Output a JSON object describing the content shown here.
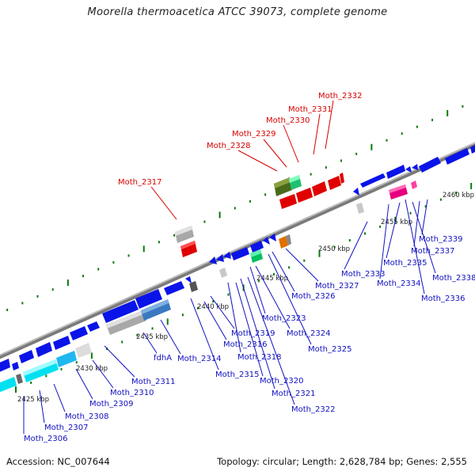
{
  "title": "Moorella thermoacetica ATCC 39073, complete genome",
  "accession": "Accession: NC_007644",
  "summary": "Topology: circular; Length: 2,628,784 bp; Genes: 2,555",
  "colors": {
    "backbone": "#8c8c8c",
    "cds_blue": "#0a14e8",
    "red_label": "#d60000",
    "blue_label": "#1010c0",
    "tick_green": "#0a7a0a"
  },
  "scale_labels": [
    "2425 kbp",
    "2430 kbp",
    "2435 kbp",
    "2440 kbp",
    "2445 kbp",
    "2450 kbp",
    "2455 kbp",
    "2460 kbp"
  ],
  "gene_labels_top": [
    "Moth_2317",
    "Moth_2328",
    "Moth_2329",
    "Moth_2330",
    "Moth_2331",
    "Moth_2332"
  ],
  "gene_labels_bottom": [
    "Moth_2306",
    "Moth_2307",
    "Moth_2308",
    "Moth_2309",
    "Moth_2310",
    "Moth_2311",
    "fdhA",
    "Moth_2314",
    "Moth_2316",
    "Moth_2315",
    "Moth_2319",
    "Moth_2318",
    "Moth_2320",
    "Moth_2321",
    "Moth_2322",
    "Moth_2323",
    "Moth_2324",
    "Moth_2325",
    "Moth_2326",
    "Moth_2327",
    "Moth_2333",
    "Moth_2334",
    "Moth_2335",
    "Moth_2336",
    "Moth_2337",
    "Moth_2338",
    "Moth_2339"
  ]
}
